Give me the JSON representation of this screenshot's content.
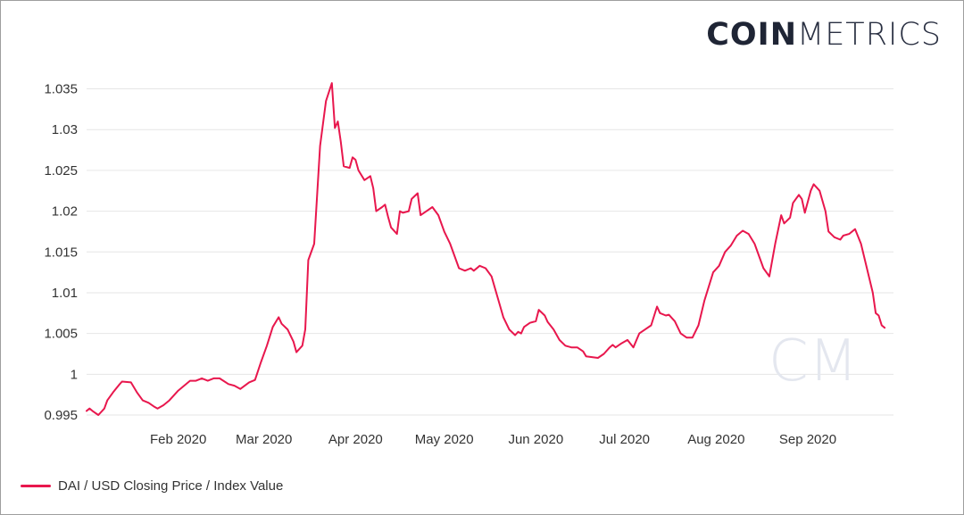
{
  "logo": {
    "bold": "COIN",
    "light": "METRICS",
    "watermark": "CM"
  },
  "colors": {
    "series": "#e8174d",
    "grid": "#e6e6e6",
    "axis_text": "#333333",
    "watermark": "#e4e7ef"
  },
  "chart_data": {
    "type": "line",
    "title": "",
    "xlabel": "",
    "ylabel": "",
    "ylim": [
      0.995,
      1.0375
    ],
    "xlim": [
      "2020-01-01",
      "2020-09-30"
    ],
    "grid": true,
    "legend_position": "bottom-left",
    "y_ticks": [
      "0.995",
      "1",
      "1.005",
      "1.01",
      "1.015",
      "1.02",
      "1.025",
      "1.03",
      "1.035"
    ],
    "x_ticks": [
      {
        "date": "2020-02-01",
        "label": "Feb 2020"
      },
      {
        "date": "2020-03-01",
        "label": "Mar 2020"
      },
      {
        "date": "2020-04-01",
        "label": "Apr 2020"
      },
      {
        "date": "2020-05-01",
        "label": "May 2020"
      },
      {
        "date": "2020-06-01",
        "label": "Jun 2020"
      },
      {
        "date": "2020-07-01",
        "label": "Jul 2020"
      },
      {
        "date": "2020-08-01",
        "label": "Aug 2020"
      },
      {
        "date": "2020-09-01",
        "label": "Sep 2020"
      }
    ],
    "series": [
      {
        "name": "DAI / USD Closing Price / Index Value",
        "points": [
          [
            "2020-01-01",
            0.9955
          ],
          [
            "2020-01-02",
            0.9958
          ],
          [
            "2020-01-03",
            0.9955
          ],
          [
            "2020-01-05",
            0.995
          ],
          [
            "2020-01-07",
            0.9958
          ],
          [
            "2020-01-08",
            0.9968
          ],
          [
            "2020-01-10",
            0.9978
          ],
          [
            "2020-01-12",
            0.9987
          ],
          [
            "2020-01-13",
            0.9991
          ],
          [
            "2020-01-16",
            0.999
          ],
          [
            "2020-01-18",
            0.9978
          ],
          [
            "2020-01-20",
            0.9968
          ],
          [
            "2020-01-22",
            0.9965
          ],
          [
            "2020-01-24",
            0.996
          ],
          [
            "2020-01-25",
            0.9958
          ],
          [
            "2020-01-27",
            0.9962
          ],
          [
            "2020-01-29",
            0.9968
          ],
          [
            "2020-02-01",
            0.998
          ],
          [
            "2020-02-03",
            0.9986
          ],
          [
            "2020-02-05",
            0.9992
          ],
          [
            "2020-02-07",
            0.9992
          ],
          [
            "2020-02-09",
            0.9995
          ],
          [
            "2020-02-11",
            0.9992
          ],
          [
            "2020-02-13",
            0.9995
          ],
          [
            "2020-02-15",
            0.9995
          ],
          [
            "2020-02-18",
            0.9988
          ],
          [
            "2020-02-20",
            0.9986
          ],
          [
            "2020-02-22",
            0.9982
          ],
          [
            "2020-02-25",
            0.999
          ],
          [
            "2020-02-27",
            0.9993
          ],
          [
            "2020-02-29",
            1.0015
          ],
          [
            "2020-03-02",
            1.0035
          ],
          [
            "2020-03-04",
            1.0058
          ],
          [
            "2020-03-06",
            1.007
          ],
          [
            "2020-03-07",
            1.0062
          ],
          [
            "2020-03-09",
            1.0055
          ],
          [
            "2020-03-11",
            1.004
          ],
          [
            "2020-03-12",
            1.0027
          ],
          [
            "2020-03-14",
            1.0035
          ],
          [
            "2020-03-15",
            1.0055
          ],
          [
            "2020-03-16",
            1.014
          ],
          [
            "2020-03-18",
            1.016
          ],
          [
            "2020-03-19",
            1.022
          ],
          [
            "2020-03-20",
            1.028
          ],
          [
            "2020-03-22",
            1.0335
          ],
          [
            "2020-03-24",
            1.0357
          ],
          [
            "2020-03-25",
            1.0302
          ],
          [
            "2020-03-26",
            1.031
          ],
          [
            "2020-03-27",
            1.0285
          ],
          [
            "2020-03-28",
            1.0255
          ],
          [
            "2020-03-30",
            1.0253
          ],
          [
            "2020-03-31",
            1.0266
          ],
          [
            "2020-04-01",
            1.0263
          ],
          [
            "2020-04-02",
            1.025
          ],
          [
            "2020-04-04",
            1.0238
          ],
          [
            "2020-04-06",
            1.0243
          ],
          [
            "2020-04-07",
            1.0228
          ],
          [
            "2020-04-08",
            1.02
          ],
          [
            "2020-04-10",
            1.0205
          ],
          [
            "2020-04-11",
            1.0208
          ],
          [
            "2020-04-12",
            1.0193
          ],
          [
            "2020-04-13",
            1.018
          ],
          [
            "2020-04-15",
            1.0172
          ],
          [
            "2020-04-16",
            1.02
          ],
          [
            "2020-04-17",
            1.0198
          ],
          [
            "2020-04-19",
            1.02
          ],
          [
            "2020-04-20",
            1.0215
          ],
          [
            "2020-04-22",
            1.0222
          ],
          [
            "2020-04-23",
            1.0195
          ],
          [
            "2020-04-25",
            1.02
          ],
          [
            "2020-04-27",
            1.0205
          ],
          [
            "2020-04-29",
            1.0195
          ],
          [
            "2020-05-01",
            1.0175
          ],
          [
            "2020-05-03",
            1.016
          ],
          [
            "2020-05-05",
            1.014
          ],
          [
            "2020-05-06",
            1.013
          ],
          [
            "2020-05-08",
            1.0127
          ],
          [
            "2020-05-10",
            1.013
          ],
          [
            "2020-05-11",
            1.0127
          ],
          [
            "2020-05-13",
            1.0133
          ],
          [
            "2020-05-15",
            1.013
          ],
          [
            "2020-05-17",
            1.012
          ],
          [
            "2020-05-19",
            1.0095
          ],
          [
            "2020-05-21",
            1.007
          ],
          [
            "2020-05-23",
            1.0055
          ],
          [
            "2020-05-25",
            1.0048
          ],
          [
            "2020-05-26",
            1.0052
          ],
          [
            "2020-05-27",
            1.005
          ],
          [
            "2020-05-28",
            1.0058
          ],
          [
            "2020-05-30",
            1.0063
          ],
          [
            "2020-06-01",
            1.0065
          ],
          [
            "2020-06-02",
            1.0079
          ],
          [
            "2020-06-04",
            1.0072
          ],
          [
            "2020-06-05",
            1.0064
          ],
          [
            "2020-06-07",
            1.0055
          ],
          [
            "2020-06-09",
            1.0042
          ],
          [
            "2020-06-11",
            1.0035
          ],
          [
            "2020-06-13",
            1.0033
          ],
          [
            "2020-06-15",
            1.0033
          ],
          [
            "2020-06-17",
            1.0028
          ],
          [
            "2020-06-18",
            1.0022
          ],
          [
            "2020-06-20",
            1.0021
          ],
          [
            "2020-06-22",
            1.002
          ],
          [
            "2020-06-24",
            1.0025
          ],
          [
            "2020-06-26",
            1.0033
          ],
          [
            "2020-06-27",
            1.0036
          ],
          [
            "2020-06-28",
            1.0033
          ],
          [
            "2020-06-30",
            1.0038
          ],
          [
            "2020-07-02",
            1.0042
          ],
          [
            "2020-07-04",
            1.0033
          ],
          [
            "2020-07-06",
            1.005
          ],
          [
            "2020-07-08",
            1.0055
          ],
          [
            "2020-07-10",
            1.006
          ],
          [
            "2020-07-12",
            1.0083
          ],
          [
            "2020-07-13",
            1.0075
          ],
          [
            "2020-07-15",
            1.0072
          ],
          [
            "2020-07-16",
            1.0073
          ],
          [
            "2020-07-18",
            1.0065
          ],
          [
            "2020-07-20",
            1.005
          ],
          [
            "2020-07-22",
            1.0045
          ],
          [
            "2020-07-24",
            1.0045
          ],
          [
            "2020-07-26",
            1.006
          ],
          [
            "2020-07-28",
            1.009
          ],
          [
            "2020-07-31",
            1.0125
          ],
          [
            "2020-08-02",
            1.0133
          ],
          [
            "2020-08-04",
            1.015
          ],
          [
            "2020-08-06",
            1.0158
          ],
          [
            "2020-08-08",
            1.017
          ],
          [
            "2020-08-10",
            1.0176
          ],
          [
            "2020-08-12",
            1.0172
          ],
          [
            "2020-08-14",
            1.016
          ],
          [
            "2020-08-16",
            1.014
          ],
          [
            "2020-08-17",
            1.013
          ],
          [
            "2020-08-19",
            1.012
          ],
          [
            "2020-08-21",
            1.016
          ],
          [
            "2020-08-23",
            1.0195
          ],
          [
            "2020-08-24",
            1.0185
          ],
          [
            "2020-08-26",
            1.0192
          ],
          [
            "2020-08-27",
            1.021
          ],
          [
            "2020-08-29",
            1.022
          ],
          [
            "2020-08-30",
            1.0215
          ],
          [
            "2020-08-31",
            1.0198
          ],
          [
            "2020-09-02",
            1.0225
          ],
          [
            "2020-09-03",
            1.0233
          ],
          [
            "2020-09-05",
            1.0225
          ],
          [
            "2020-09-07",
            1.02
          ],
          [
            "2020-09-08",
            1.0175
          ],
          [
            "2020-09-10",
            1.0168
          ],
          [
            "2020-09-12",
            1.0165
          ],
          [
            "2020-09-13",
            1.017
          ],
          [
            "2020-09-15",
            1.0172
          ],
          [
            "2020-09-17",
            1.0178
          ],
          [
            "2020-09-19",
            1.016
          ],
          [
            "2020-09-21",
            1.013
          ],
          [
            "2020-09-23",
            1.01
          ],
          [
            "2020-09-24",
            1.0075
          ],
          [
            "2020-09-25",
            1.0072
          ],
          [
            "2020-09-26",
            1.006
          ],
          [
            "2020-09-27",
            1.0057
          ]
        ]
      }
    ]
  },
  "legend": {
    "label": "DAI / USD Closing Price / Index Value"
  }
}
